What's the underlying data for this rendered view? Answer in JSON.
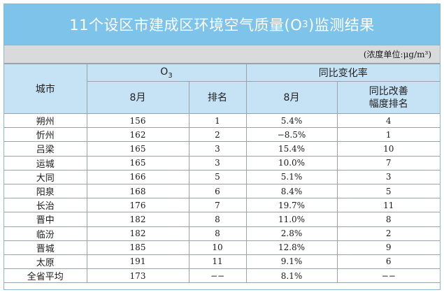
{
  "title": {
    "prefix": "11个设区市建成区环境空气质量(O",
    "sub": "3",
    "suffix": ")监测结果"
  },
  "unit_note": "(浓度单位:μg/m³)",
  "headers": {
    "city": "城市",
    "o3_group_prefix": "O",
    "o3_group_sub": "3",
    "yoy_group": "同比变化率",
    "month": "8月",
    "rank": "排名",
    "yoy_month": "8月",
    "improve_rank": "同比改善\n幅度排名"
  },
  "rows": [
    {
      "city": "朔州",
      "value": "156",
      "rank": "1",
      "yoy": "5.4%",
      "improve": "4"
    },
    {
      "city": "忻州",
      "value": "162",
      "rank": "2",
      "yoy": "−8.5%",
      "improve": "1"
    },
    {
      "city": "吕梁",
      "value": "165",
      "rank": "3",
      "yoy": "15.4%",
      "improve": "10"
    },
    {
      "city": "运城",
      "value": "165",
      "rank": "3",
      "yoy": "10.0%",
      "improve": "7"
    },
    {
      "city": "大同",
      "value": "166",
      "rank": "5",
      "yoy": "5.1%",
      "improve": "3"
    },
    {
      "city": "阳泉",
      "value": "168",
      "rank": "6",
      "yoy": "8.4%",
      "improve": "5"
    },
    {
      "city": "长治",
      "value": "176",
      "rank": "7",
      "yoy": "19.7%",
      "improve": "11"
    },
    {
      "city": "晋中",
      "value": "182",
      "rank": "8",
      "yoy": "11.0%",
      "improve": "8"
    },
    {
      "city": "临汾",
      "value": "182",
      "rank": "8",
      "yoy": "2.8%",
      "improve": "2"
    },
    {
      "city": "晋城",
      "value": "185",
      "rank": "10",
      "yoy": "12.8%",
      "improve": "9"
    },
    {
      "city": "太原",
      "value": "191",
      "rank": "11",
      "yoy": "9.1%",
      "improve": "6"
    }
  ],
  "average": {
    "city": "全省平均",
    "value": "173",
    "rank": "−−",
    "yoy": "8.1%",
    "improve": "−−"
  },
  "colors": {
    "title_bg": "#7ec3ea",
    "header_bg": "#c6e2f5",
    "unit_bg": "#d9dadb"
  }
}
